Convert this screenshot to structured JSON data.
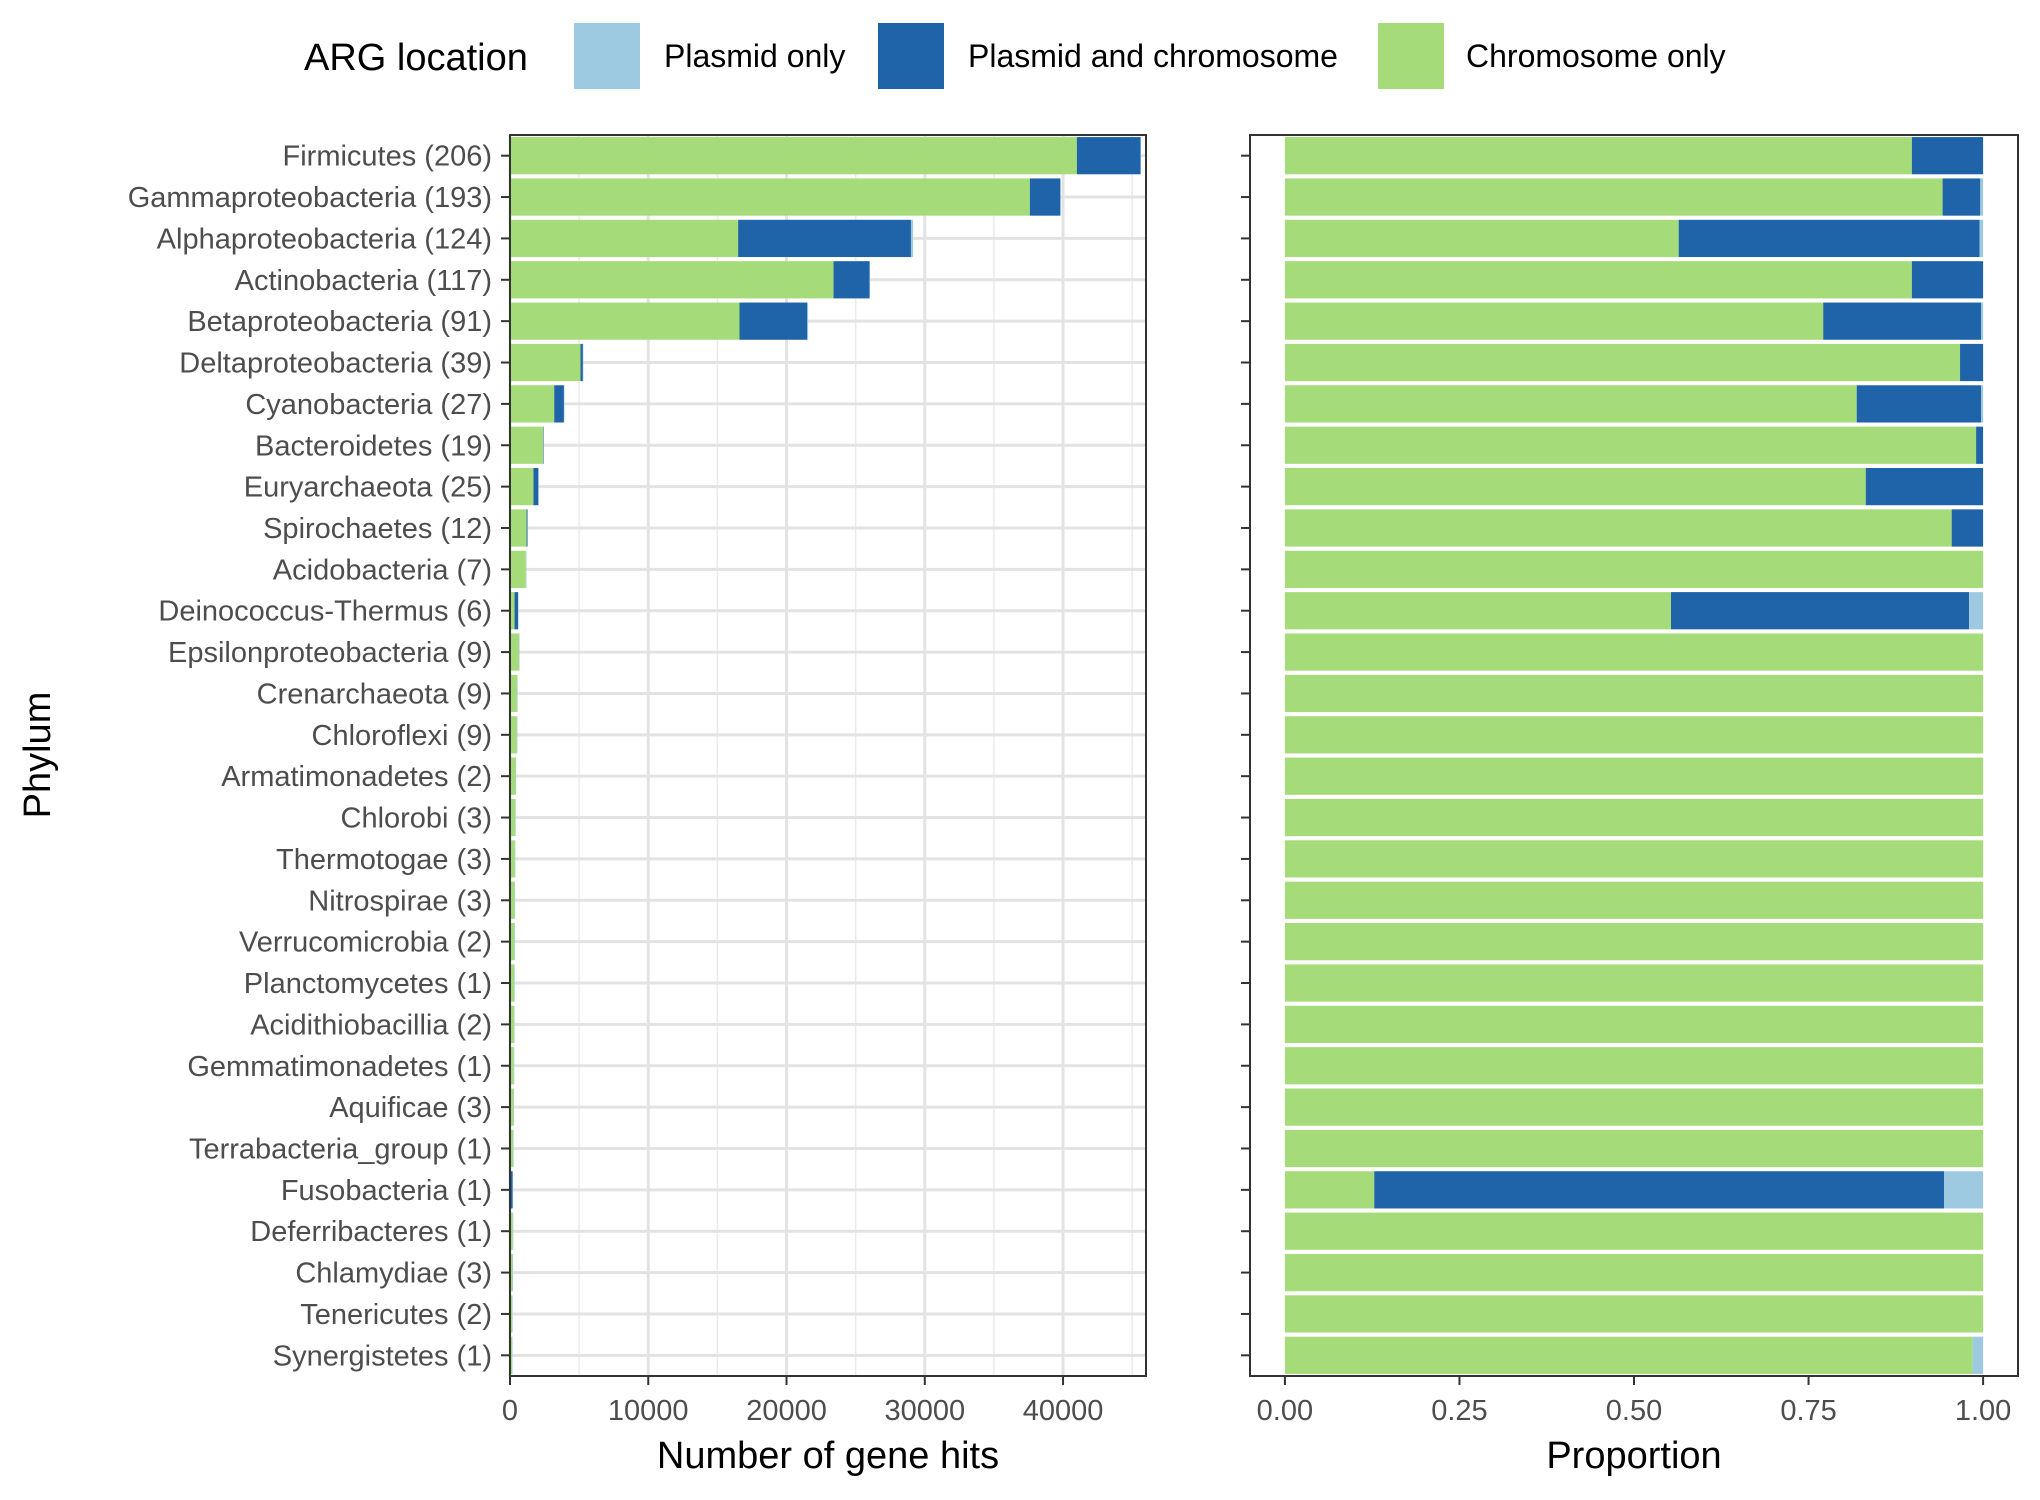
{
  "legend": {
    "title": "ARG location",
    "items": [
      {
        "label": "Plasmid only",
        "color": "#9ecae1"
      },
      {
        "label": "Plasmid and chromosome",
        "color": "#1f63a8"
      },
      {
        "label": "Chromosome only",
        "color": "#a6db7a"
      }
    ]
  },
  "y_title": "Phylum",
  "chart_data": [
    {
      "type": "bar",
      "orientation": "horizontal",
      "stacked": true,
      "xlabel": "Number of gene hits",
      "ylabel": "Phylum",
      "xlim": [
        0,
        46000
      ],
      "x_ticks": [
        0,
        10000,
        20000,
        30000,
        40000
      ],
      "grid": true,
      "legend_position": "top",
      "categories": [
        "Firmicutes (206)",
        "Gammaproteobacteria (193)",
        "Alphaproteobacteria (124)",
        "Actinobacteria (117)",
        "Betaproteobacteria (91)",
        "Deltaproteobacteria (39)",
        "Cyanobacteria (27)",
        "Bacteroidetes (19)",
        "Euryarchaeota (25)",
        "Spirochaetes (12)",
        "Acidobacteria (7)",
        "Deinococcus-Thermus (6)",
        "Epsilonproteobacteria (9)",
        "Crenarchaeota (9)",
        "Chloroflexi (9)",
        "Armatimonadetes (2)",
        "Chlorobi (3)",
        "Thermotogae (3)",
        "Nitrospirae (3)",
        "Verrucomicrobia (2)",
        "Planctomycetes (1)",
        "Acidithiobacillia (2)",
        "Gemmatimonadetes (1)",
        "Aquificae (3)",
        "Terrabacteria_group (1)",
        "Fusobacteria (1)",
        "Deferribacteres (1)",
        "Chlamydiae (3)",
        "Tenericutes (2)",
        "Synergistetes (1)"
      ],
      "series": [
        {
          "name": "Chromosome only",
          "values": [
            41000,
            37600,
            16500,
            23400,
            16600,
            5100,
            3200,
            2400,
            1700,
            1200,
            1150,
            330,
            650,
            520,
            500,
            400,
            380,
            350,
            330,
            320,
            310,
            290,
            270,
            250,
            230,
            25,
            200,
            180,
            160,
            150
          ]
        },
        {
          "name": "Plasmid and chromosome",
          "values": [
            4600,
            2200,
            12500,
            2600,
            4900,
            170,
            700,
            20,
            350,
            60,
            0,
            250,
            0,
            0,
            0,
            0,
            0,
            0,
            0,
            0,
            0,
            0,
            0,
            0,
            0,
            160,
            0,
            0,
            0,
            0
          ]
        },
        {
          "name": "Plasmid only",
          "values": [
            30,
            50,
            150,
            15,
            60,
            5,
            10,
            1,
            1,
            1,
            1,
            10,
            1,
            1,
            1,
            1,
            1,
            1,
            1,
            1,
            1,
            1,
            1,
            1,
            1,
            10,
            1,
            1,
            1,
            2
          ]
        }
      ]
    },
    {
      "type": "bar",
      "orientation": "horizontal",
      "stacked": true,
      "xlabel": "Proportion",
      "ylabel": "",
      "xlim": [
        -0.05,
        1.05
      ],
      "x_ticks": [
        "0.00",
        "0.25",
        "0.50",
        "0.75",
        "1.00"
      ],
      "grid": false,
      "legend_position": "top",
      "categories": [
        "Firmicutes (206)",
        "Gammaproteobacteria (193)",
        "Alphaproteobacteria (124)",
        "Actinobacteria (117)",
        "Betaproteobacteria (91)",
        "Deltaproteobacteria (39)",
        "Cyanobacteria (27)",
        "Bacteroidetes (19)",
        "Euryarchaeota (25)",
        "Spirochaetes (12)",
        "Acidobacteria (7)",
        "Deinococcus-Thermus (6)",
        "Epsilonproteobacteria (9)",
        "Crenarchaeota (9)",
        "Chloroflexi (9)",
        "Armatimonadetes (2)",
        "Chlorobi (3)",
        "Thermotogae (3)",
        "Nitrospirae (3)",
        "Verrucomicrobia (2)",
        "Planctomycetes (1)",
        "Acidithiobacillia (2)",
        "Gemmatimonadetes (1)",
        "Aquificae (3)",
        "Terrabacteria_group (1)",
        "Fusobacteria (1)",
        "Deferribacteres (1)",
        "Chlamydiae (3)",
        "Tenericutes (2)",
        "Synergistetes (1)"
      ],
      "series": [
        {
          "name": "Chromosome only",
          "values": [
            0.898,
            0.942,
            0.564,
            0.898,
            0.771,
            0.967,
            0.819,
            0.99,
            0.832,
            0.955,
            1.0,
            0.553,
            1.0,
            1.0,
            1.0,
            1.0,
            1.0,
            1.0,
            1.0,
            1.0,
            1.0,
            1.0,
            1.0,
            1.0,
            1.0,
            0.128,
            1.0,
            1.0,
            1.0,
            0.985
          ]
        },
        {
          "name": "Plasmid and chromosome",
          "values": [
            0.102,
            0.054,
            0.431,
            0.102,
            0.226,
            0.033,
            0.178,
            0.01,
            0.168,
            0.045,
            0.0,
            0.427,
            0.0,
            0.0,
            0.0,
            0.0,
            0.0,
            0.0,
            0.0,
            0.0,
            0.0,
            0.0,
            0.0,
            0.0,
            0.0,
            0.816,
            0.0,
            0.0,
            0.0,
            0.0
          ]
        },
        {
          "name": "Plasmid only",
          "values": [
            0.0,
            0.004,
            0.005,
            0.0,
            0.003,
            0.0,
            0.003,
            0.0,
            0.0,
            0.0,
            0.0,
            0.02,
            0.0,
            0.0,
            0.0,
            0.0,
            0.0,
            0.0,
            0.0,
            0.0,
            0.0,
            0.0,
            0.0,
            0.0,
            0.0,
            0.056,
            0.0,
            0.0,
            0.0,
            0.015
          ]
        }
      ]
    }
  ]
}
